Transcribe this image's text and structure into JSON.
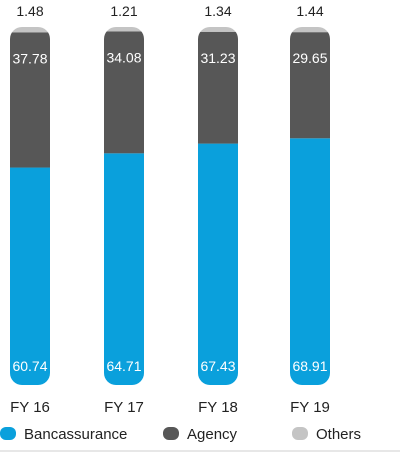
{
  "chart_data": {
    "type": "bar",
    "stacked": true,
    "percent_stacked": true,
    "categories": [
      "FY 16",
      "FY 17",
      "FY 18",
      "FY 19"
    ],
    "series": [
      {
        "name": "Bancassurance",
        "color": "#0aa0dc",
        "values": [
          60.74,
          64.71,
          67.43,
          68.91
        ]
      },
      {
        "name": "Agency",
        "color": "#575757",
        "values": [
          37.78,
          34.08,
          31.23,
          29.65
        ]
      },
      {
        "name": "Others",
        "color": "#c4c4c4",
        "values": [
          1.48,
          1.21,
          1.34,
          1.44
        ]
      }
    ],
    "value_labels": {
      "Bancassurance": [
        "60.74",
        "64.71",
        "67.43",
        "68.91"
      ],
      "Agency": [
        "37.78",
        "34.08",
        "31.23",
        "29.65"
      ],
      "Others": [
        "1.48",
        "1.21",
        "1.34",
        "1.44"
      ]
    },
    "title": "",
    "xlabel": "",
    "ylabel": "",
    "ylim": [
      0,
      100
    ],
    "legend_position": "bottom",
    "grid": false
  }
}
